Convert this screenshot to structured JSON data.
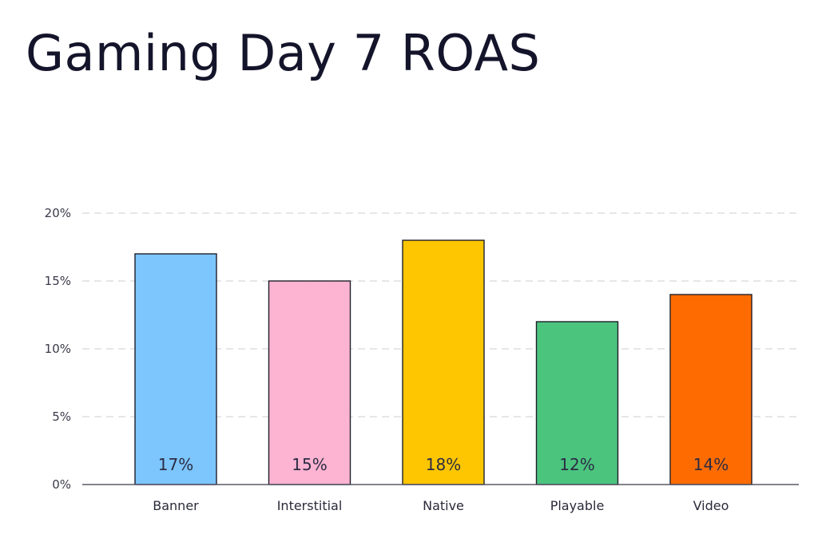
{
  "chart_data": {
    "type": "bar",
    "title": "Gaming Day 7 ROAS",
    "xlabel": "",
    "ylabel": "",
    "categories": [
      "Banner",
      "Interstitial",
      "Native",
      "Playable",
      "Video"
    ],
    "values": [
      17,
      15,
      18,
      12,
      14
    ],
    "value_labels": [
      "17%",
      "15%",
      "18%",
      "12%",
      "14%"
    ],
    "colors": [
      "#7cc5fd",
      "#fdb3d2",
      "#fec600",
      "#4bc47e",
      "#fe6c01"
    ],
    "ylim": [
      0,
      20
    ],
    "yticks": [
      0,
      5,
      10,
      15,
      20
    ],
    "ytick_labels": [
      "0%",
      "5%",
      "10%",
      "15%",
      "20%"
    ],
    "grid": true,
    "legend": "none"
  }
}
